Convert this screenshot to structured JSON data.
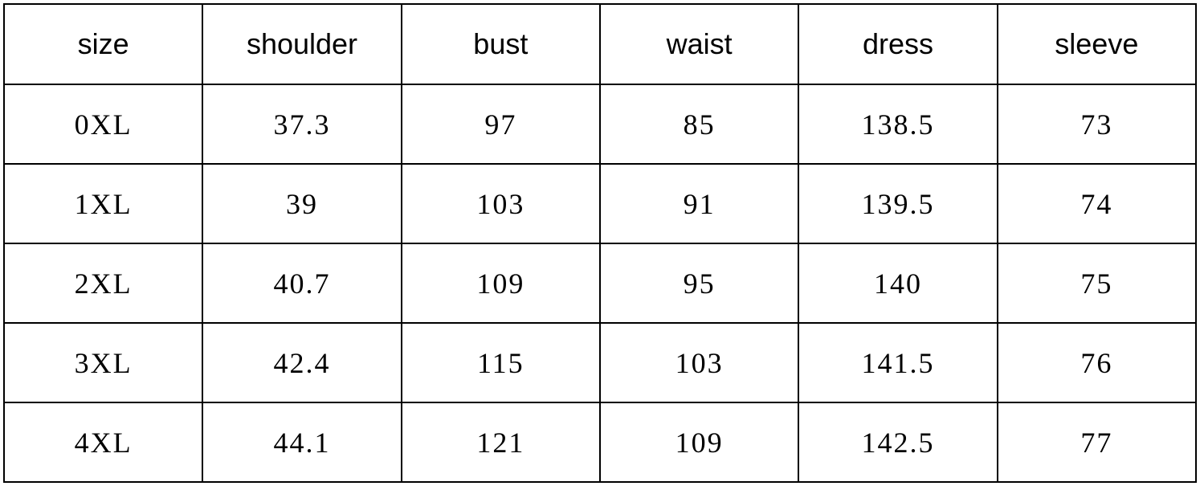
{
  "size_table": {
    "type": "table",
    "columns": [
      "size",
      "shoulder",
      "bust",
      "waist",
      "dress",
      "sleeve"
    ],
    "rows": [
      [
        "0XL",
        "37.3",
        "97",
        "85",
        "138.5",
        "73"
      ],
      [
        "1XL",
        "39",
        "103",
        "91",
        "139.5",
        "74"
      ],
      [
        "2XL",
        "40.7",
        "109",
        "95",
        "140",
        "75"
      ],
      [
        "3XL",
        "42.4",
        "115",
        "103",
        "141.5",
        "76"
      ],
      [
        "4XL",
        "44.1",
        "121",
        "109",
        "142.5",
        "77"
      ]
    ],
    "header_fontsize": 36,
    "cell_fontsize": 36,
    "border_color": "#000000",
    "background_color": "#ffffff",
    "text_color": "#000000",
    "column_count": 6,
    "row_count": 5,
    "header_font_family": "Segoe UI, Arial, sans-serif",
    "cell_font_family": "SimSun, serif"
  }
}
